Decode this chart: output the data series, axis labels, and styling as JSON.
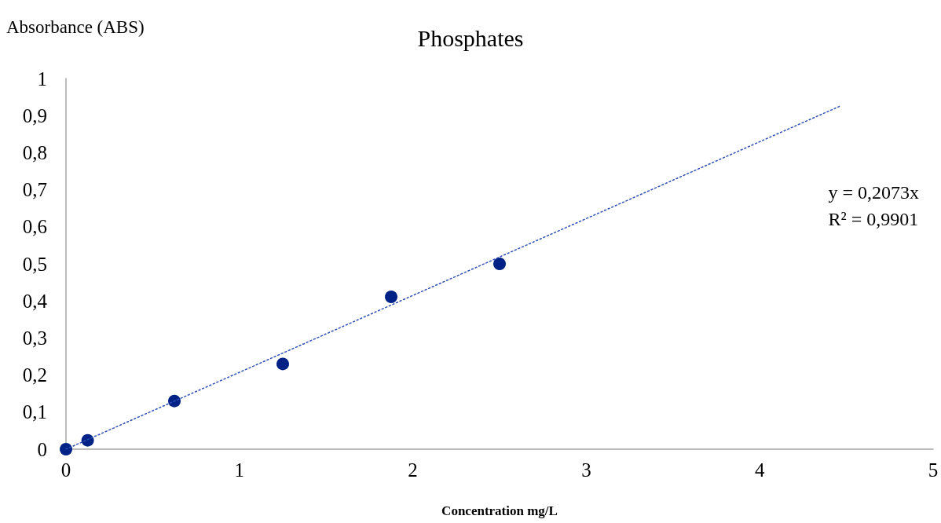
{
  "chart_data": {
    "type": "scatter",
    "title": "Phosphates",
    "xlabel": "Concentration mg/L",
    "ylabel": "Absorbance (ABS)",
    "series": [
      {
        "color": "#002287",
        "marker": "circle",
        "x": [
          0,
          0.125,
          0.625,
          1.25,
          1.875,
          2.5
        ],
        "values": [
          0,
          0.024,
          0.13,
          0.23,
          0.411,
          0.5
        ]
      },
      {
        "type": "line",
        "color": "#2f4fb5",
        "marker": "none",
        "line_style": "dotted",
        "x": [
          0,
          4.47
        ],
        "values": [
          0,
          0.927
        ]
      }
    ],
    "annotations": [
      "y = 0,2073x",
      "R² = 0,9901"
    ],
    "xlim": [
      0,
      5
    ],
    "xticks": [
      0,
      1,
      2,
      3,
      4,
      5
    ],
    "ylim": [
      0,
      1
    ],
    "yticks": [
      0,
      {
        "value": 0.1,
        "label": "0,1"
      },
      {
        "value": 0.2,
        "label": "0,2"
      },
      {
        "value": 0.3,
        "label": "0,3"
      },
      {
        "value": 0.4,
        "label": "0,4"
      },
      {
        "value": 0.5,
        "label": "0,5"
      },
      {
        "value": 0.6,
        "label": "0,6"
      },
      {
        "value": 0.7,
        "label": "0,7"
      },
      {
        "value": 0.8,
        "label": "0,8"
      },
      {
        "value": 0.9,
        "label": "0,9"
      },
      1
    ],
    "grid": false
  }
}
